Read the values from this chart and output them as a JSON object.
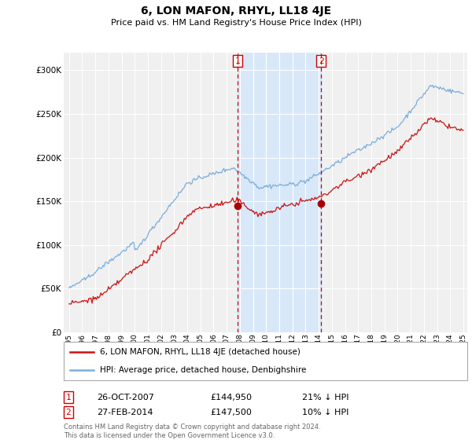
{
  "title": "6, LON MAFON, RHYL, LL18 4JE",
  "subtitle": "Price paid vs. HM Land Registry's House Price Index (HPI)",
  "legend_line1": "6, LON MAFON, RHYL, LL18 4JE (detached house)",
  "legend_line2": "HPI: Average price, detached house, Denbighshire",
  "transaction1": {
    "label": "1",
    "date": "26-OCT-2007",
    "price": "£144,950",
    "hpi": "21% ↓ HPI"
  },
  "transaction2": {
    "label": "2",
    "date": "27-FEB-2014",
    "price": "£147,500",
    "hpi": "10% ↓ HPI"
  },
  "vline1_year": 2007.83,
  "vline2_year": 2014.17,
  "point1_year": 2007.83,
  "point1_value": 144950,
  "point2_year": 2014.17,
  "point2_value": 147500,
  "ylim": [
    0,
    320000
  ],
  "yticks": [
    0,
    50000,
    100000,
    150000,
    200000,
    250000,
    300000
  ],
  "xlim_start": 1994.6,
  "xlim_end": 2025.3,
  "background_color": "#ffffff",
  "plot_background": "#f0f0f0",
  "grid_color": "#ffffff",
  "hpi_line_color": "#7aaddc",
  "price_line_color": "#cc1111",
  "vline_color": "#cc0000",
  "vshade_color": "#d8e8f8",
  "point_color": "#aa0000",
  "copyright_text": "Contains HM Land Registry data © Crown copyright and database right 2024.\nThis data is licensed under the Open Government Licence v3.0.",
  "footer_color": "#666666"
}
